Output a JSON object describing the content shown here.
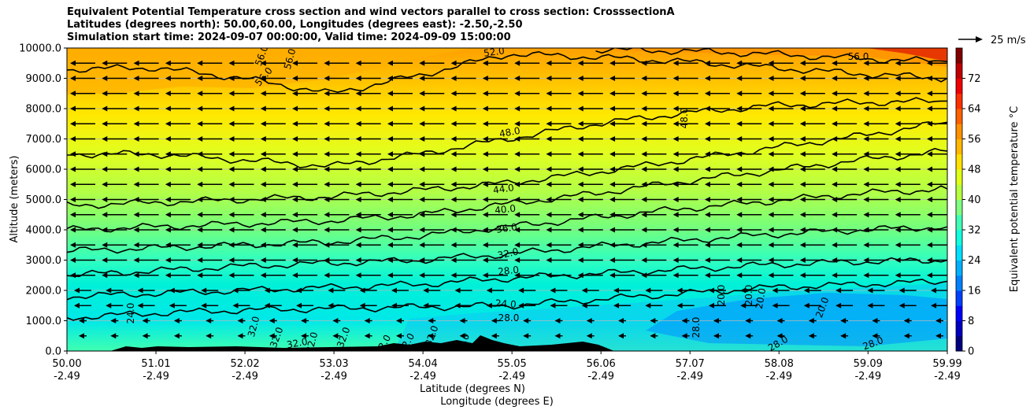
{
  "title": {
    "line1": "Equivalent Potential Temperature cross section and wind vectors parallel to cross section: CrosssectionA",
    "line2": "Latitudes (degrees north): 50.00,60.00, Longitudes (degrees east): -2.50,-2.50",
    "line3": "Simulation start time: 2024-09-07 00:00:00, Valid time: 2024-09-09 15:00:00"
  },
  "colors": {
    "background_ramp": [
      "#0000b0",
      "#0050ff",
      "#00e8e0",
      "#40ffb8",
      "#b0ff48",
      "#ffe800",
      "#ff9000",
      "#900000"
    ],
    "contour": "#000000",
    "terrain": "#000000"
  },
  "chart_data": {
    "type": "heatmap",
    "subtype": "cross-section contour with wind vectors",
    "xlabel_lat": "Latitude (degrees N)",
    "xlabel_lon": "Longitude (degrees E)",
    "ylabel": "Altitude (meters)",
    "x_lat_ticks": [
      "50.00",
      "51.01",
      "52.02",
      "53.03",
      "54.04",
      "55.05",
      "56.06",
      "57.07",
      "58.08",
      "59.09",
      "59.99"
    ],
    "x_lon_ticks": [
      "-2.49",
      "-2.49",
      "-2.49",
      "-2.49",
      "-2.49",
      "-2.49",
      "-2.49",
      "-2.49",
      "-2.49",
      "-2.49",
      "-2.49"
    ],
    "xlim": [
      50.0,
      59.99
    ],
    "y_ticks": [
      "0.0",
      "1000.0",
      "2000.0",
      "3000.0",
      "4000.0",
      "5000.0",
      "6000.0",
      "7000.0",
      "8000.0",
      "9000.0",
      "10000.0"
    ],
    "ylim": [
      0,
      10000
    ],
    "grid": "horizontal lines",
    "colorbar": {
      "label": "Equivalent potential temperature °C",
      "range": [
        0,
        80
      ],
      "ticks": [
        "0",
        "8",
        "16",
        "24",
        "32",
        "40",
        "48",
        "56",
        "64",
        "72"
      ]
    },
    "quiver_key": "25 m/s",
    "contour_labels": [
      "52.0",
      "56.0",
      "56.0",
      "56.0",
      "56.0",
      "48.0",
      "48.0",
      "44.0",
      "40.0",
      "36.0",
      "32.0",
      "28.0",
      "24.0",
      "28.0",
      "24.0",
      "32.0",
      "32.0",
      "32.0",
      "32.0",
      "32.0",
      "32.0",
      "32.0",
      "32.0",
      "28.0",
      "28.0",
      "20.0",
      "20.0",
      "20.0",
      "20.0",
      "28.0",
      "28.0"
    ],
    "contours": [
      {
        "level": 24,
        "points": [
          [
            50.0,
            1100
          ],
          [
            51.0,
            1250
          ],
          [
            52.0,
            1350
          ],
          [
            53.0,
            1400
          ],
          [
            54.0,
            1450
          ],
          [
            55.0,
            1500
          ],
          [
            56.0,
            1700
          ],
          [
            57.0,
            1900
          ],
          [
            58.0,
            2100
          ],
          [
            59.0,
            2200
          ],
          [
            59.99,
            2300
          ]
        ]
      },
      {
        "level": 28,
        "points": [
          [
            50.0,
            1800
          ],
          [
            51.0,
            1900
          ],
          [
            52.0,
            2000
          ],
          [
            53.0,
            2100
          ],
          [
            54.0,
            2200
          ],
          [
            55.0,
            2400
          ],
          [
            56.0,
            2550
          ],
          [
            57.0,
            2700
          ],
          [
            58.0,
            2850
          ],
          [
            59.0,
            2950
          ],
          [
            59.99,
            3000
          ]
        ]
      },
      {
        "level": 32,
        "points": [
          [
            50.0,
            2500
          ],
          [
            51.0,
            2650
          ],
          [
            52.0,
            2800
          ],
          [
            53.0,
            2900
          ],
          [
            54.0,
            3000
          ],
          [
            55.0,
            3200
          ],
          [
            56.0,
            3450
          ],
          [
            57.0,
            3650
          ],
          [
            58.0,
            3850
          ],
          [
            59.0,
            4000
          ],
          [
            59.99,
            4100
          ]
        ]
      },
      {
        "level": 36,
        "points": [
          [
            50.0,
            3300
          ],
          [
            51.0,
            3400
          ],
          [
            52.0,
            3500
          ],
          [
            53.0,
            3600
          ],
          [
            54.0,
            3800
          ],
          [
            55.0,
            4100
          ],
          [
            56.0,
            4400
          ],
          [
            57.0,
            4700
          ],
          [
            58.0,
            4950
          ],
          [
            59.0,
            5200
          ],
          [
            59.99,
            5350
          ]
        ]
      },
      {
        "level": 40,
        "points": [
          [
            50.0,
            4000
          ],
          [
            51.0,
            4100
          ],
          [
            52.0,
            4200
          ],
          [
            53.0,
            4300
          ],
          [
            54.0,
            4500
          ],
          [
            55.0,
            4850
          ],
          [
            56.0,
            5200
          ],
          [
            57.0,
            5600
          ],
          [
            58.0,
            5950
          ],
          [
            59.0,
            6300
          ],
          [
            59.99,
            6600
          ]
        ]
      },
      {
        "level": 44,
        "points": [
          [
            50.0,
            4800
          ],
          [
            51.0,
            4900
          ],
          [
            52.0,
            5000
          ],
          [
            53.0,
            5100
          ],
          [
            54.0,
            5300
          ],
          [
            55.0,
            5550
          ],
          [
            56.0,
            5900
          ],
          [
            57.0,
            6300
          ],
          [
            58.0,
            6700
          ],
          [
            59.0,
            7100
          ],
          [
            59.99,
            7550
          ]
        ]
      },
      {
        "level": 48,
        "points": [
          [
            50.0,
            6500
          ],
          [
            51.0,
            6500
          ],
          [
            52.0,
            6300
          ],
          [
            53.0,
            6100
          ],
          [
            54.0,
            6500
          ],
          [
            55.0,
            7000
          ],
          [
            56.0,
            7500
          ],
          [
            57.0,
            7850
          ],
          [
            58.0,
            8100
          ],
          [
            59.0,
            8200
          ],
          [
            59.99,
            8250
          ]
        ]
      },
      {
        "level": 52,
        "points": [
          [
            50.0,
            9300
          ],
          [
            51.0,
            9350
          ],
          [
            52.0,
            9000
          ],
          [
            53.0,
            8500
          ],
          [
            54.0,
            9100
          ],
          [
            55.0,
            9800
          ],
          [
            56.0,
            9700
          ],
          [
            57.0,
            9550
          ],
          [
            58.0,
            9350
          ],
          [
            59.0,
            9150
          ],
          [
            59.99,
            9000
          ]
        ]
      },
      {
        "level": 56,
        "points": [
          [
            56.0,
            9950
          ],
          [
            57.0,
            9900
          ],
          [
            58.0,
            9800
          ],
          [
            59.0,
            9650
          ],
          [
            59.99,
            9550
          ]
        ]
      }
    ],
    "wind_vectors": "westward-pointing arrows at every grid level, longest aloft (about 25 m/s), shortest near the surface"
  }
}
